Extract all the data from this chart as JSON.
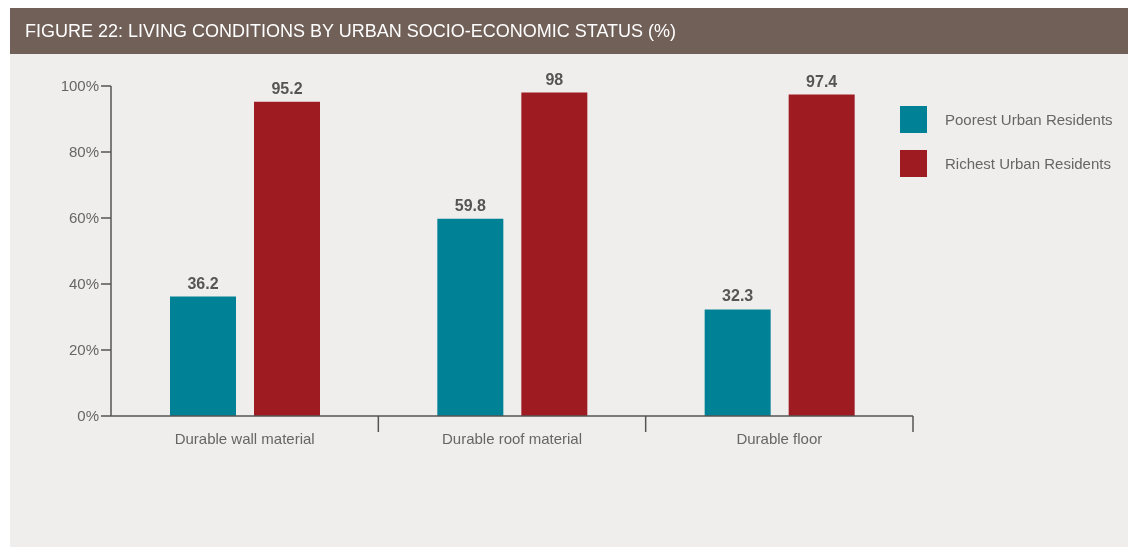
{
  "chart_data": {
    "type": "bar",
    "title": "FIGURE 22: LIVING CONDITIONS BY URBAN SOCIO-ECONOMIC STATUS (%)",
    "categories": [
      "Durable wall material",
      "Durable roof material",
      "Durable floor"
    ],
    "series": [
      {
        "name": "Poorest Urban Residents",
        "color": "#008196",
        "values": [
          36.2,
          59.8,
          32.3
        ]
      },
      {
        "name": "Richest Urban Residents",
        "color": "#9e1b22",
        "values": [
          95.2,
          98,
          97.4
        ]
      }
    ],
    "ylim": [
      0,
      100
    ],
    "yticks": [
      {
        "value": 0,
        "label": "0%"
      },
      {
        "value": 20,
        "label": "20%"
      },
      {
        "value": 40,
        "label": "40%"
      },
      {
        "value": 60,
        "label": "60%"
      },
      {
        "value": 80,
        "label": "80%"
      },
      {
        "value": 100,
        "label": "100%"
      }
    ],
    "data_labels": true,
    "legend": "top right"
  }
}
